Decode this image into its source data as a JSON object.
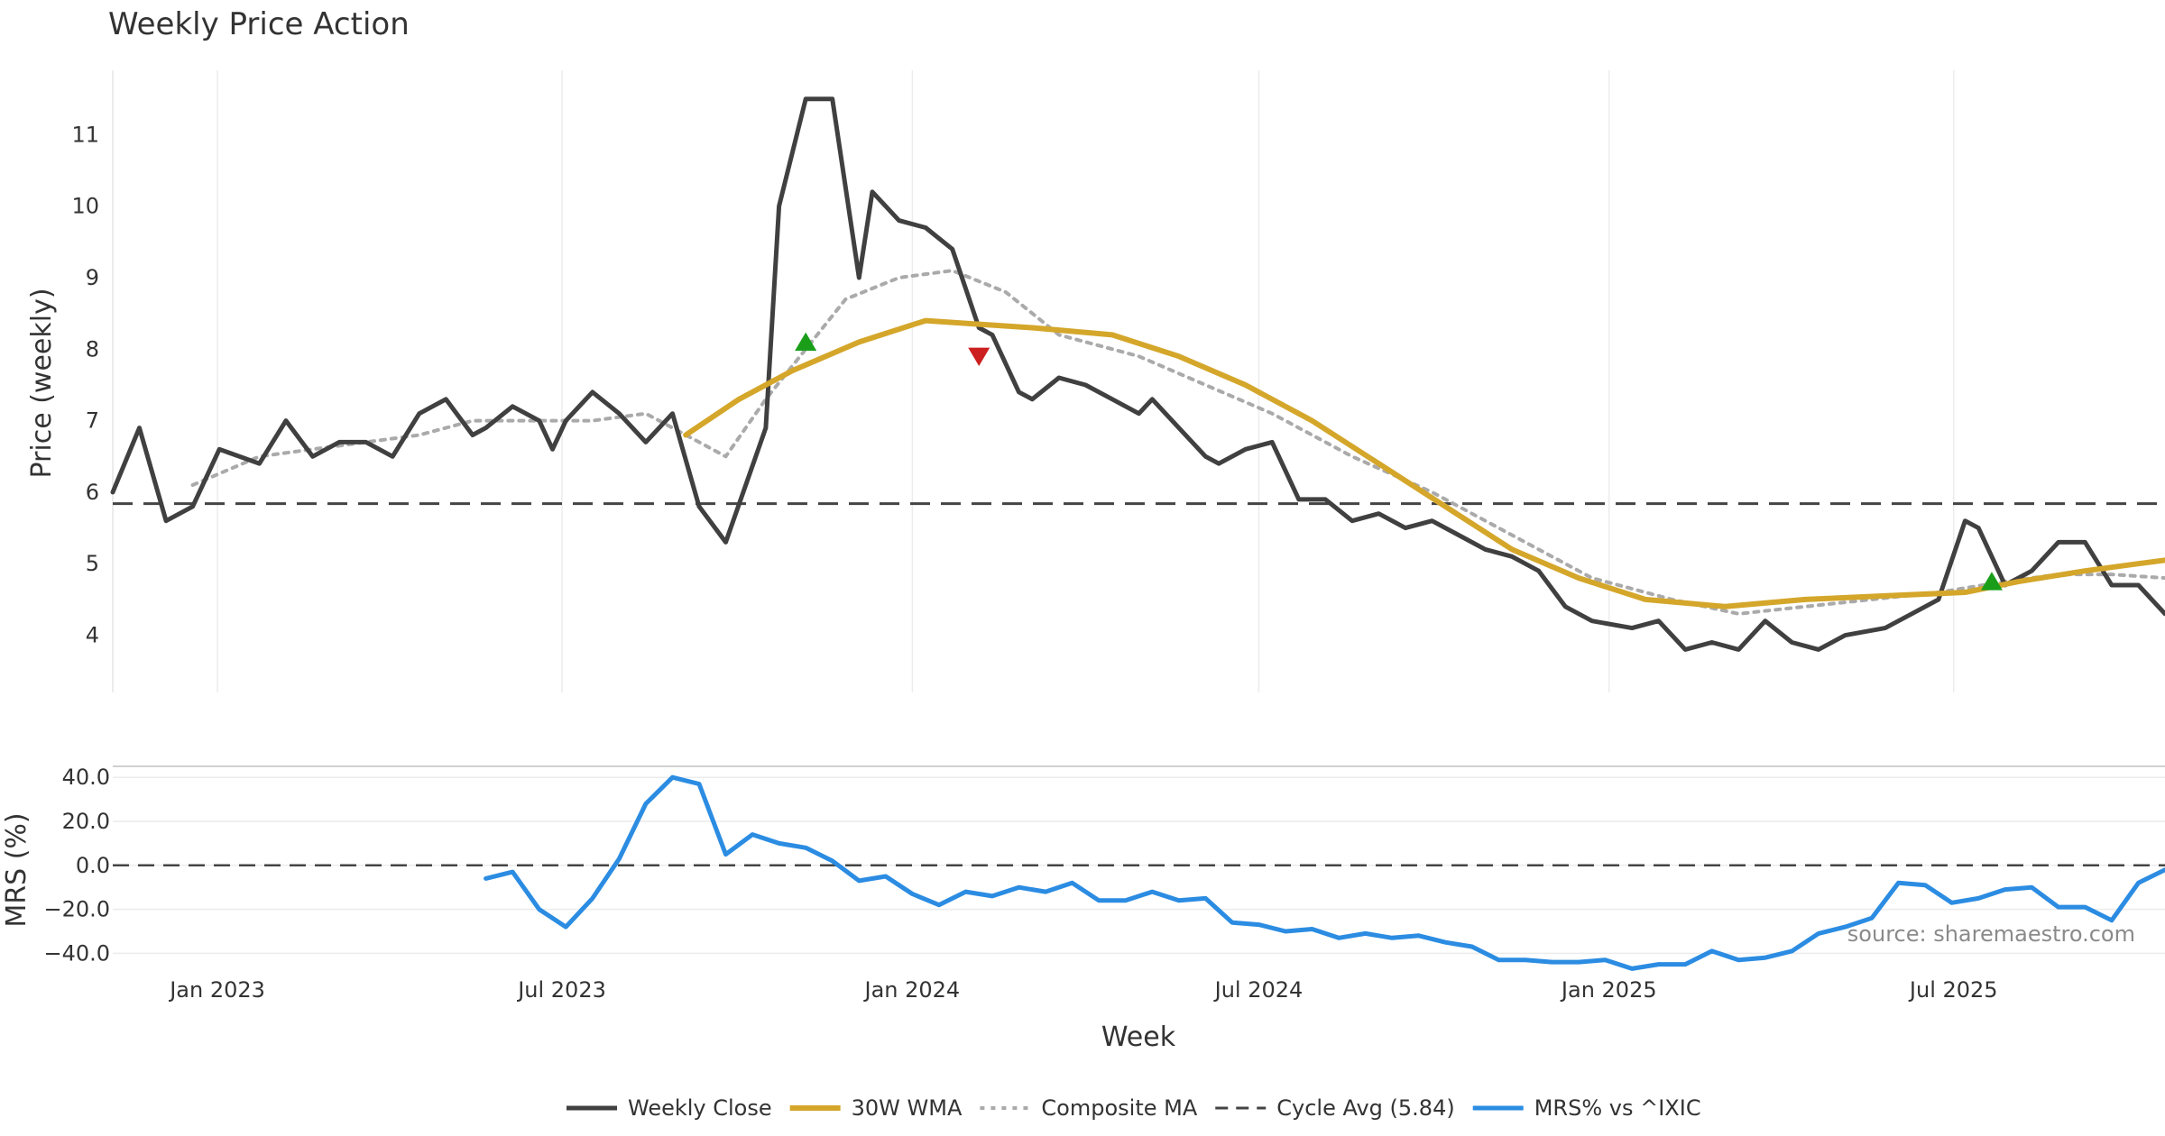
{
  "chart_data": {
    "type": "line",
    "title": "Weekly Price Action",
    "xlabel": "Week",
    "x_ticks": [
      "Jan 2023",
      "Jul 2023",
      "Jan 2024",
      "Jul 2024",
      "Jan 2025",
      "Jul 2025"
    ],
    "x_tick_dates": [
      "2023-01-01",
      "2023-07-01",
      "2024-01-01",
      "2024-07-01",
      "2025-01-01",
      "2025-07-01"
    ],
    "x_range": [
      "2022-11-07",
      "2025-10-20"
    ],
    "price_panel": {
      "ylabel": "Price (weekly)",
      "ylim": [
        3.2,
        11.9
      ],
      "yticks": [
        4,
        5,
        6,
        7,
        8,
        9,
        10,
        11
      ],
      "cycle_avg": 5.84,
      "series": [
        {
          "name": "Weekly Close",
          "color": "#404040",
          "style": "solid",
          "points": [
            [
              "2022-11-07",
              6.0
            ],
            [
              "2022-11-21",
              6.9
            ],
            [
              "2022-12-05",
              5.6
            ],
            [
              "2022-12-19",
              5.8
            ],
            [
              "2023-01-02",
              6.6
            ],
            [
              "2023-01-23",
              6.4
            ],
            [
              "2023-02-06",
              7.0
            ],
            [
              "2023-02-20",
              6.5
            ],
            [
              "2023-03-06",
              6.7
            ],
            [
              "2023-03-20",
              6.7
            ],
            [
              "2023-04-03",
              6.5
            ],
            [
              "2023-04-17",
              7.1
            ],
            [
              "2023-05-01",
              7.3
            ],
            [
              "2023-05-15",
              6.8
            ],
            [
              "2023-05-22",
              6.9
            ],
            [
              "2023-06-05",
              7.2
            ],
            [
              "2023-06-19",
              7.0
            ],
            [
              "2023-06-26",
              6.6
            ],
            [
              "2023-07-03",
              7.0
            ],
            [
              "2023-07-17",
              7.4
            ],
            [
              "2023-07-31",
              7.1
            ],
            [
              "2023-08-14",
              6.7
            ],
            [
              "2023-08-28",
              7.1
            ],
            [
              "2023-09-11",
              5.8
            ],
            [
              "2023-09-25",
              5.3
            ],
            [
              "2023-10-16",
              6.9
            ],
            [
              "2023-10-23",
              10.0
            ],
            [
              "2023-11-06",
              11.5
            ],
            [
              "2023-11-20",
              11.5
            ],
            [
              "2023-12-04",
              9.0
            ],
            [
              "2023-12-11",
              10.2
            ],
            [
              "2023-12-25",
              9.8
            ],
            [
              "2024-01-08",
              9.7
            ],
            [
              "2024-01-22",
              9.4
            ],
            [
              "2024-02-05",
              8.3
            ],
            [
              "2024-02-12",
              8.2
            ],
            [
              "2024-02-26",
              7.4
            ],
            [
              "2024-03-04",
              7.3
            ],
            [
              "2024-03-18",
              7.6
            ],
            [
              "2024-04-01",
              7.5
            ],
            [
              "2024-04-15",
              7.3
            ],
            [
              "2024-04-29",
              7.1
            ],
            [
              "2024-05-06",
              7.3
            ],
            [
              "2024-05-20",
              6.9
            ],
            [
              "2024-06-03",
              6.5
            ],
            [
              "2024-06-10",
              6.4
            ],
            [
              "2024-06-24",
              6.6
            ],
            [
              "2024-07-08",
              6.7
            ],
            [
              "2024-07-22",
              5.9
            ],
            [
              "2024-08-05",
              5.9
            ],
            [
              "2024-08-19",
              5.6
            ],
            [
              "2024-09-02",
              5.7
            ],
            [
              "2024-09-16",
              5.5
            ],
            [
              "2024-09-30",
              5.6
            ],
            [
              "2024-10-14",
              5.4
            ],
            [
              "2024-10-28",
              5.2
            ],
            [
              "2024-11-11",
              5.1
            ],
            [
              "2024-11-25",
              4.9
            ],
            [
              "2024-12-09",
              4.4
            ],
            [
              "2024-12-23",
              4.2
            ],
            [
              "2025-01-13",
              4.1
            ],
            [
              "2025-01-27",
              4.2
            ],
            [
              "2025-02-10",
              3.8
            ],
            [
              "2025-02-24",
              3.9
            ],
            [
              "2025-03-10",
              3.8
            ],
            [
              "2025-03-24",
              4.2
            ],
            [
              "2025-04-07",
              3.9
            ],
            [
              "2025-04-21",
              3.8
            ],
            [
              "2025-05-05",
              4.0
            ],
            [
              "2025-05-26",
              4.1
            ],
            [
              "2025-06-09",
              4.3
            ],
            [
              "2025-06-23",
              4.5
            ],
            [
              "2025-07-07",
              5.6
            ],
            [
              "2025-07-14",
              5.5
            ],
            [
              "2025-07-28",
              4.7
            ],
            [
              "2025-08-11",
              4.9
            ],
            [
              "2025-08-25",
              5.3
            ],
            [
              "2025-09-08",
              5.3
            ],
            [
              "2025-09-22",
              4.7
            ],
            [
              "2025-10-06",
              4.7
            ],
            [
              "2025-10-20",
              4.3
            ]
          ]
        },
        {
          "name": "30W WMA",
          "color": "#d4a62a",
          "style": "solid",
          "points": [
            [
              "2023-09-04",
              6.8
            ],
            [
              "2023-10-02",
              7.3
            ],
            [
              "2023-10-30",
              7.7
            ],
            [
              "2023-12-04",
              8.1
            ],
            [
              "2024-01-08",
              8.4
            ],
            [
              "2024-02-05",
              8.35
            ],
            [
              "2024-03-04",
              8.3
            ],
            [
              "2024-04-15",
              8.2
            ],
            [
              "2024-05-20",
              7.9
            ],
            [
              "2024-06-24",
              7.5
            ],
            [
              "2024-07-29",
              7.0
            ],
            [
              "2024-09-02",
              6.4
            ],
            [
              "2024-10-07",
              5.8
            ],
            [
              "2024-11-11",
              5.2
            ],
            [
              "2024-12-16",
              4.8
            ],
            [
              "2025-01-20",
              4.5
            ],
            [
              "2025-03-03",
              4.4
            ],
            [
              "2025-04-14",
              4.5
            ],
            [
              "2025-05-26",
              4.55
            ],
            [
              "2025-07-07",
              4.6
            ],
            [
              "2025-08-04",
              4.75
            ],
            [
              "2025-09-08",
              4.9
            ],
            [
              "2025-10-06",
              5.0
            ],
            [
              "2025-10-20",
              5.05
            ]
          ]
        },
        {
          "name": "Composite MA",
          "color": "#aaaaaa",
          "style": "dotted",
          "points": [
            [
              "2022-12-19",
              6.1
            ],
            [
              "2023-01-23",
              6.5
            ],
            [
              "2023-02-20",
              6.6
            ],
            [
              "2023-03-20",
              6.7
            ],
            [
              "2023-04-17",
              6.8
            ],
            [
              "2023-05-15",
              7.0
            ],
            [
              "2023-06-19",
              7.0
            ],
            [
              "2023-07-17",
              7.0
            ],
            [
              "2023-08-14",
              7.1
            ],
            [
              "2023-09-11",
              6.7
            ],
            [
              "2023-09-25",
              6.5
            ],
            [
              "2023-10-16",
              7.3
            ],
            [
              "2023-11-06",
              8.0
            ],
            [
              "2023-11-27",
              8.7
            ],
            [
              "2023-12-25",
              9.0
            ],
            [
              "2024-01-22",
              9.1
            ],
            [
              "2024-02-19",
              8.8
            ],
            [
              "2024-03-18",
              8.2
            ],
            [
              "2024-04-29",
              7.9
            ],
            [
              "2024-06-03",
              7.5
            ],
            [
              "2024-07-08",
              7.1
            ],
            [
              "2024-08-19",
              6.5
            ],
            [
              "2024-09-30",
              6.0
            ],
            [
              "2024-11-11",
              5.4
            ],
            [
              "2024-12-23",
              4.8
            ],
            [
              "2025-02-03",
              4.5
            ],
            [
              "2025-03-10",
              4.3
            ],
            [
              "2025-04-14",
              4.4
            ],
            [
              "2025-05-19",
              4.5
            ],
            [
              "2025-06-23",
              4.6
            ],
            [
              "2025-07-28",
              4.75
            ],
            [
              "2025-08-25",
              4.85
            ],
            [
              "2025-09-22",
              4.85
            ],
            [
              "2025-10-20",
              4.8
            ]
          ]
        }
      ],
      "markers": [
        {
          "date": "2023-11-06",
          "value": 8.1,
          "type": "buy",
          "color": "#1a9e1a"
        },
        {
          "date": "2024-02-05",
          "value": 7.9,
          "type": "sell",
          "color": "#cc1f1f"
        },
        {
          "date": "2025-07-21",
          "value": 4.75,
          "type": "buy",
          "color": "#1a9e1a"
        }
      ]
    },
    "mrs_panel": {
      "ylabel": "MRS (%)",
      "ylim": [
        -46,
        45
      ],
      "yticks": [
        "40.0",
        "20.0",
        "0.0",
        "−20.0",
        "−40.0"
      ],
      "ytick_values": [
        40,
        20,
        0,
        -20,
        -40
      ],
      "series": [
        {
          "name": "MRS% vs ^IXIC",
          "color": "#2b8ce2",
          "style": "solid",
          "points": [
            [
              "2023-05-22",
              -6
            ],
            [
              "2023-06-05",
              -3
            ],
            [
              "2023-06-19",
              -20
            ],
            [
              "2023-07-03",
              -28
            ],
            [
              "2023-07-17",
              -15
            ],
            [
              "2023-07-31",
              3
            ],
            [
              "2023-08-14",
              28
            ],
            [
              "2023-08-28",
              40
            ],
            [
              "2023-09-11",
              37
            ],
            [
              "2023-09-25",
              5
            ],
            [
              "2023-10-09",
              14
            ],
            [
              "2023-10-23",
              10
            ],
            [
              "2023-11-06",
              8
            ],
            [
              "2023-11-20",
              2
            ],
            [
              "2023-12-04",
              -7
            ],
            [
              "2023-12-18",
              -5
            ],
            [
              "2024-01-01",
              -13
            ],
            [
              "2024-01-15",
              -18
            ],
            [
              "2024-01-29",
              -12
            ],
            [
              "2024-02-12",
              -14
            ],
            [
              "2024-02-26",
              -10
            ],
            [
              "2024-03-11",
              -12
            ],
            [
              "2024-03-25",
              -8
            ],
            [
              "2024-04-08",
              -16
            ],
            [
              "2024-04-22",
              -16
            ],
            [
              "2024-05-06",
              -12
            ],
            [
              "2024-05-20",
              -16
            ],
            [
              "2024-06-03",
              -15
            ],
            [
              "2024-06-17",
              -26
            ],
            [
              "2024-07-01",
              -27
            ],
            [
              "2024-07-15",
              -30
            ],
            [
              "2024-07-29",
              -29
            ],
            [
              "2024-08-12",
              -33
            ],
            [
              "2024-08-26",
              -31
            ],
            [
              "2024-09-09",
              -33
            ],
            [
              "2024-09-23",
              -32
            ],
            [
              "2024-10-07",
              -35
            ],
            [
              "2024-10-21",
              -37
            ],
            [
              "2024-11-04",
              -43
            ],
            [
              "2024-11-18",
              -43
            ],
            [
              "2024-12-02",
              -44
            ],
            [
              "2024-12-16",
              -44
            ],
            [
              "2024-12-30",
              -43
            ],
            [
              "2025-01-13",
              -47
            ],
            [
              "2025-01-27",
              -45
            ],
            [
              "2025-02-10",
              -45
            ],
            [
              "2025-02-24",
              -39
            ],
            [
              "2025-03-10",
              -43
            ],
            [
              "2025-03-24",
              -42
            ],
            [
              "2025-04-07",
              -39
            ],
            [
              "2025-04-21",
              -31
            ],
            [
              "2025-05-05",
              -28
            ],
            [
              "2025-05-19",
              -24
            ],
            [
              "2025-06-02",
              -8
            ],
            [
              "2025-06-16",
              -9
            ],
            [
              "2025-06-30",
              -17
            ],
            [
              "2025-07-14",
              -15
            ],
            [
              "2025-07-28",
              -11
            ],
            [
              "2025-08-11",
              -10
            ],
            [
              "2025-08-25",
              -19
            ],
            [
              "2025-09-08",
              -19
            ],
            [
              "2025-09-22",
              -25
            ],
            [
              "2025-10-06",
              -8
            ],
            [
              "2025-10-20",
              -2
            ]
          ]
        }
      ]
    },
    "legend": [
      "Weekly Close",
      "30W WMA",
      "Composite MA",
      "Cycle Avg (5.84)",
      "MRS% vs ^IXIC"
    ],
    "legend_position": "bottom-center",
    "annotation": "source: sharemaestro.com"
  }
}
